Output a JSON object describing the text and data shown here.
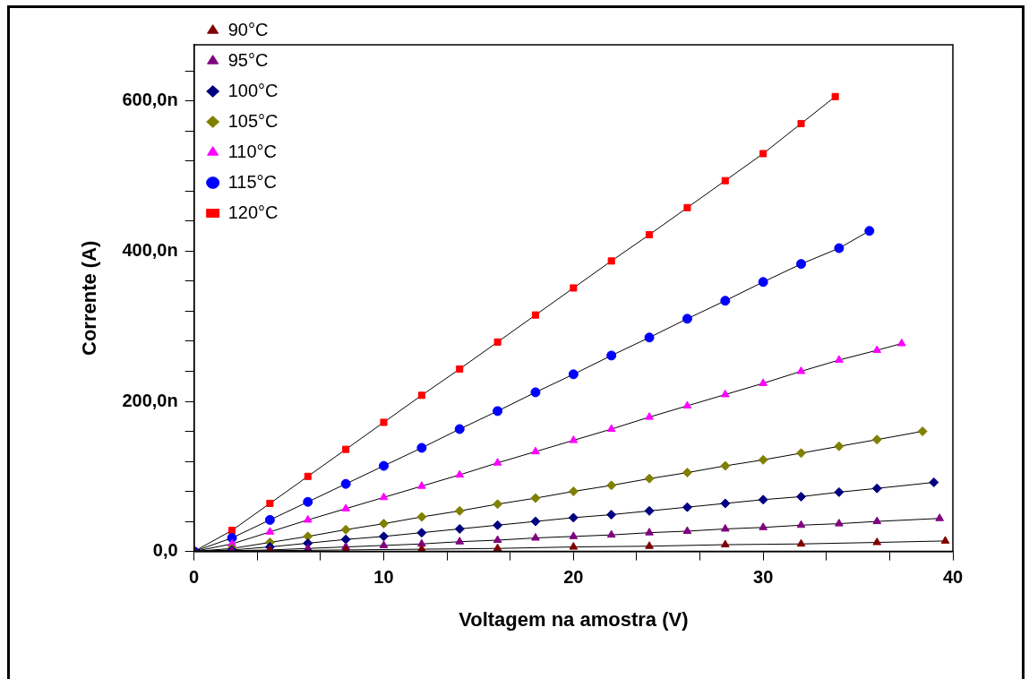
{
  "chart_data": {
    "type": "line",
    "xlabel": "Voltagem na amostra (V)",
    "ylabel": "Corrente (A)",
    "xlim": [
      0,
      40
    ],
    "xticks": [
      0,
      {
        "value": 3.33,
        "label": null
      },
      {
        "value": 6.67,
        "label": null
      },
      10,
      {
        "value": 13.33,
        "label": null
      },
      {
        "value": 16.67,
        "label": null
      },
      20,
      {
        "value": 23.33,
        "label": null
      },
      {
        "value": 26.67,
        "label": null
      },
      30,
      {
        "value": 33.33,
        "label": null
      },
      {
        "value": 36.67,
        "label": null
      },
      40
    ],
    "ylim": [
      0,
      675
    ],
    "yticks": [
      {
        "value": 0,
        "label": "0,0"
      },
      {
        "value": 40,
        "label": null
      },
      {
        "value": 80,
        "label": null
      },
      {
        "value": 120,
        "label": null
      },
      {
        "value": 160,
        "label": null
      },
      {
        "value": 200,
        "label": "200,0n"
      },
      {
        "value": 240,
        "label": null
      },
      {
        "value": 280,
        "label": null
      },
      {
        "value": 320,
        "label": null
      },
      {
        "value": 360,
        "label": null
      },
      {
        "value": 400,
        "label": "400,0n"
      },
      {
        "value": 440,
        "label": null
      },
      {
        "value": 480,
        "label": null
      },
      {
        "value": 520,
        "label": null
      },
      {
        "value": 560,
        "label": null
      },
      {
        "value": 600,
        "label": "600,0n"
      },
      {
        "value": 640,
        "label": null
      }
    ],
    "grid": false,
    "legend": "top left",
    "line_style": "solid",
    "series": [
      {
        "name": "90°C",
        "color": "#800000",
        "marker": "triangle",
        "x": [
          0,
          4,
          8,
          12,
          16,
          20,
          24,
          28,
          32,
          36,
          39.6
        ],
        "values": [
          0,
          1,
          2,
          3,
          4,
          6,
          7,
          9,
          10,
          12,
          14
        ]
      },
      {
        "name": "95°C",
        "color": "#800080",
        "marker": "triangle",
        "x": [
          0,
          2,
          4,
          6,
          8,
          10,
          12,
          14,
          16,
          18,
          20,
          22,
          24,
          26,
          28,
          30,
          32,
          34,
          36,
          39.3
        ],
        "values": [
          0,
          1,
          2,
          4,
          6,
          8,
          10,
          13,
          15,
          18,
          20,
          22,
          25,
          27,
          30,
          32,
          35,
          37,
          40,
          44
        ]
      },
      {
        "name": "100°C",
        "color": "#000080",
        "marker": "diamond",
        "x": [
          0,
          2,
          4,
          6,
          8,
          10,
          12,
          14,
          16,
          18,
          20,
          22,
          24,
          26,
          28,
          30,
          32,
          34,
          36,
          39
        ],
        "values": [
          0,
          2,
          6,
          11,
          16,
          20,
          25,
          30,
          35,
          40,
          45,
          49,
          54,
          59,
          64,
          69,
          73,
          79,
          84,
          92
        ]
      },
      {
        "name": "105°C",
        "color": "#808000",
        "marker": "diamond",
        "x": [
          0,
          2,
          4,
          6,
          8,
          10,
          12,
          14,
          16,
          18,
          20,
          22,
          24,
          26,
          28,
          30,
          32,
          34,
          36,
          38.4
        ],
        "values": [
          0,
          4,
          12,
          20,
          29,
          37,
          46,
          54,
          63,
          71,
          80,
          88,
          97,
          105,
          114,
          122,
          131,
          140,
          149,
          160
        ]
      },
      {
        "name": "110°C",
        "color": "#ff00ff",
        "marker": "triangle",
        "x": [
          0,
          2,
          4,
          6,
          8,
          10,
          12,
          14,
          16,
          18,
          20,
          22,
          24,
          26,
          28,
          30,
          32,
          34,
          36,
          37.3
        ],
        "values": [
          0,
          10,
          26,
          42,
          57,
          72,
          87,
          102,
          118,
          133,
          148,
          163,
          179,
          194,
          209,
          224,
          240,
          255,
          268,
          277
        ]
      },
      {
        "name": "115°C",
        "color": "#0000ff",
        "marker": "circle",
        "x": [
          0,
          2,
          4,
          6,
          8,
          10,
          12,
          14,
          16,
          18,
          20,
          22,
          24,
          26,
          28,
          30,
          32,
          34,
          35.6
        ],
        "values": [
          0,
          18,
          42,
          66,
          90,
          114,
          138,
          163,
          187,
          212,
          236,
          261,
          285,
          310,
          334,
          359,
          383,
          404,
          427
        ]
      },
      {
        "name": "120°C",
        "color": "#ff0000",
        "marker": "square",
        "x": [
          0,
          2,
          4,
          6,
          8,
          10,
          12,
          14,
          16,
          18,
          20,
          22,
          24,
          26,
          28,
          30,
          32,
          33.8
        ],
        "values": [
          0,
          28,
          64,
          100,
          136,
          172,
          208,
          243,
          279,
          315,
          351,
          387,
          422,
          458,
          494,
          530,
          570,
          606
        ]
      }
    ]
  }
}
